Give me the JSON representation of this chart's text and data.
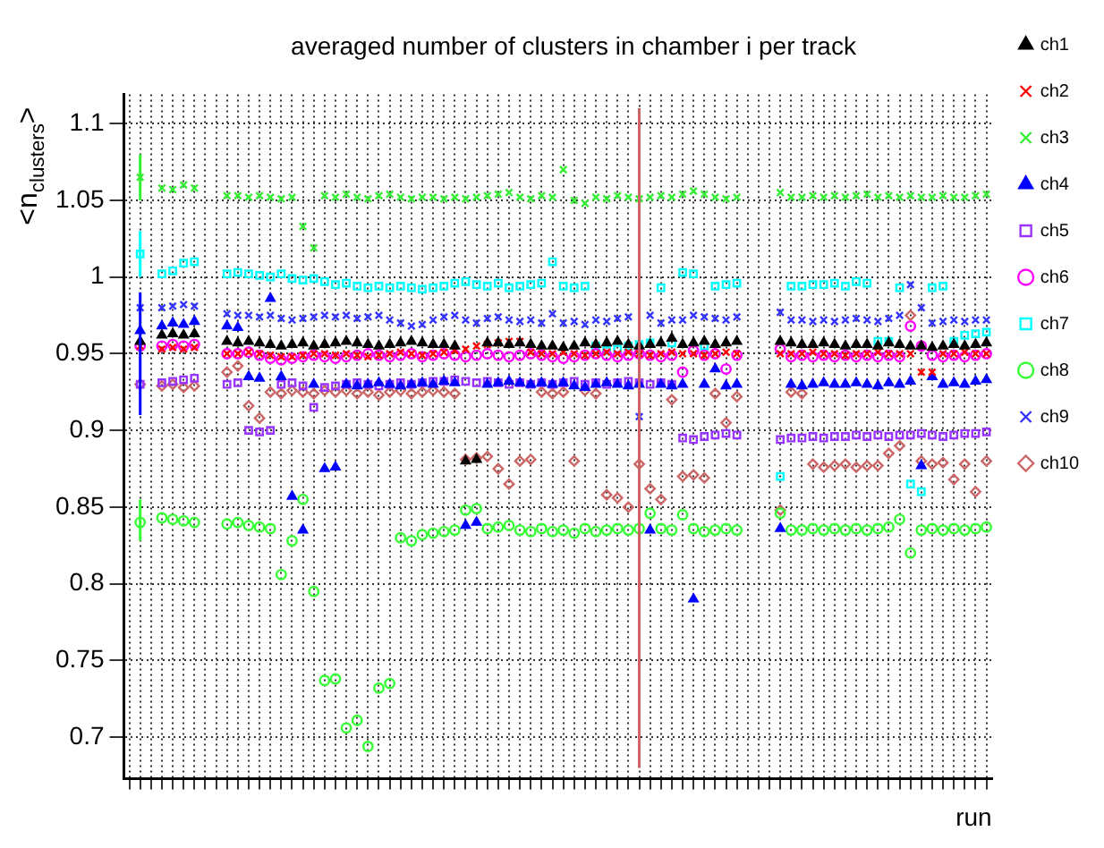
{
  "chart_data": {
    "type": "scatter",
    "title": "averaged number of clusters in chamber i per track",
    "xlabel": "run",
    "ylabel": "<n$_{clusters}$>",
    "categories": [
      null,
      null,
      null,
      null,
      null,
      null,
      null,
      null,
      null,
      null,
      null,
      null,
      null,
      null,
      null,
      null,
      null,
      null,
      null,
      null,
      null,
      null,
      null,
      null,
      null,
      null,
      null,
      null,
      null,
      null,
      null,
      null,
      null,
      null,
      null,
      null,
      null,
      null,
      null,
      null,
      null,
      null,
      null,
      null,
      null,
      null,
      null,
      null,
      null,
      null,
      null,
      null,
      null,
      null,
      null,
      null,
      null,
      null,
      null,
      null,
      null,
      null,
      null,
      null,
      null,
      null,
      null,
      null,
      null,
      null,
      null,
      null,
      null,
      null,
      null,
      null,
      null,
      null,
      null,
      null
    ],
    "ylim": [
      0.673,
      1.119
    ],
    "yticks": [
      0.7,
      0.75,
      0.8,
      0.85,
      0.9,
      0.95,
      1,
      1.05,
      1.1
    ],
    "grid": true,
    "legend": "right",
    "tick_labels": "y",
    "series": [
      {
        "name": "ch1",
        "color": "#000000",
        "marker": "triangle",
        "values": [
          null,
          0.958,
          null,
          0.962,
          0.963,
          0.962,
          0.963,
          null,
          null,
          0.958,
          0.957,
          0.958,
          0.957,
          0.956,
          0.955,
          0.956,
          0.957,
          0.955,
          0.956,
          0.957,
          0.958,
          0.957,
          0.956,
          0.955,
          0.956,
          0.957,
          0.958,
          0.957,
          0.956,
          0.956,
          0.955,
          0.88,
          0.881,
          0.957,
          0.957,
          0.956,
          0.957,
          0.956,
          0.955,
          0.955,
          0.954,
          0.955,
          0.957,
          0.956,
          0.957,
          0.958,
          0.956,
          0.955,
          0.956,
          0.957,
          0.96,
          0.956,
          0.957,
          0.958,
          0.956,
          0.957,
          0.958,
          null,
          null,
          null,
          0.958,
          0.957,
          0.956,
          0.956,
          0.957,
          0.956,
          0.955,
          0.956,
          0.956,
          0.955,
          0.957,
          0.956,
          0.955,
          0.955,
          0.954,
          0.955,
          0.956,
          0.955,
          0.956,
          0.957
        ]
      },
      {
        "name": "ch2",
        "color": "#ff0000",
        "marker": "cross",
        "values": [
          null,
          0.955,
          null,
          0.953,
          0.954,
          0.953,
          0.954,
          null,
          null,
          0.95,
          0.95,
          0.951,
          0.95,
          0.949,
          0.948,
          0.948,
          0.949,
          0.95,
          0.95,
          0.949,
          0.95,
          0.949,
          0.948,
          0.949,
          0.95,
          0.951,
          0.95,
          0.949,
          0.95,
          0.951,
          0.952,
          0.953,
          0.955,
          0.956,
          0.957,
          0.958,
          0.958,
          0.951,
          0.95,
          0.95,
          0.951,
          0.95,
          0.949,
          0.95,
          0.951,
          0.95,
          0.951,
          0.95,
          0.949,
          0.95,
          0.951,
          0.95,
          0.95,
          0.949,
          0.95,
          0.951,
          0.95,
          null,
          null,
          null,
          0.95,
          0.95,
          0.95,
          0.951,
          0.95,
          0.95,
          0.949,
          0.95,
          0.95,
          0.951,
          0.95,
          0.95,
          0.95,
          0.938,
          0.938,
          0.95,
          0.95,
          0.951,
          0.95,
          0.95
        ]
      },
      {
        "name": "ch3",
        "color": "#33ee33",
        "marker": "cross",
        "values": [
          null,
          1.065,
          null,
          1.058,
          1.057,
          1.06,
          1.058,
          null,
          null,
          1.053,
          1.053,
          1.052,
          1.053,
          1.052,
          1.051,
          1.052,
          1.033,
          1.019,
          1.053,
          1.052,
          1.054,
          1.052,
          1.051,
          1.053,
          1.054,
          1.052,
          1.051,
          1.052,
          1.052,
          1.051,
          1.052,
          1.051,
          1.052,
          1.053,
          1.054,
          1.055,
          1.052,
          1.051,
          1.053,
          1.052,
          1.07,
          1.05,
          1.048,
          1.052,
          1.051,
          1.053,
          1.052,
          1.051,
          1.052,
          1.053,
          1.052,
          1.054,
          1.056,
          1.054,
          1.052,
          1.051,
          1.052,
          null,
          null,
          null,
          1.055,
          1.052,
          1.052,
          1.053,
          1.052,
          1.053,
          1.052,
          1.053,
          1.054,
          1.052,
          1.053,
          1.052,
          1.053,
          1.052,
          1.052,
          1.053,
          1.052,
          1.052,
          1.053,
          1.054
        ],
        "errors": [
          null,
          [
            1.05,
            1.08
          ],
          null,
          null,
          null,
          null,
          null,
          null,
          null,
          null,
          null,
          null,
          null,
          null,
          null,
          null,
          null,
          null,
          null,
          null,
          null,
          null,
          null,
          null,
          null,
          null,
          null,
          null,
          null,
          null,
          null,
          null,
          null,
          null,
          null,
          null,
          null,
          null,
          null,
          null,
          null,
          null,
          null,
          null,
          null,
          null,
          null,
          null,
          null,
          null,
          null,
          null,
          null,
          null,
          null,
          null,
          null,
          null,
          null,
          null,
          null,
          null,
          null,
          null,
          null,
          null,
          null,
          null,
          null,
          null,
          null,
          null,
          null,
          null,
          null,
          null,
          null,
          null,
          null,
          null
        ]
      },
      {
        "name": "ch4",
        "color": "#0000ff",
        "marker": "triangle",
        "values": [
          null,
          0.965,
          null,
          0.968,
          0.97,
          0.969,
          0.971,
          null,
          null,
          0.968,
          0.967,
          0.935,
          0.934,
          0.986,
          0.935,
          0.857,
          0.835,
          0.93,
          0.875,
          0.876,
          0.93,
          0.929,
          0.93,
          0.931,
          0.93,
          0.929,
          0.93,
          0.931,
          0.93,
          0.932,
          0.931,
          0.838,
          0.84,
          0.93,
          0.931,
          0.932,
          0.931,
          0.93,
          0.931,
          0.93,
          0.931,
          0.929,
          0.928,
          0.93,
          0.931,
          0.93,
          0.929,
          0.93,
          0.835,
          0.93,
          0.929,
          0.93,
          0.79,
          0.93,
          0.94,
          0.929,
          0.93,
          null,
          null,
          null,
          0.836,
          0.93,
          0.929,
          0.93,
          0.931,
          0.93,
          0.93,
          0.931,
          0.93,
          0.929,
          0.931,
          0.93,
          0.932,
          0.877,
          0.935,
          0.93,
          0.931,
          0.93,
          0.932,
          0.933
        ],
        "errors": [
          null,
          [
            0.91,
            0.99
          ],
          null,
          null,
          null,
          null,
          null,
          null,
          null,
          null,
          null,
          null,
          null,
          null,
          null,
          null,
          null,
          null,
          null,
          null,
          null,
          null,
          null,
          null,
          null,
          null,
          null,
          null,
          null,
          null,
          null,
          null,
          null,
          null,
          null,
          null,
          null,
          null,
          null,
          null,
          null,
          null,
          null,
          null,
          null,
          null,
          null,
          null,
          null,
          null,
          null,
          null,
          null,
          null,
          null,
          null,
          null,
          null,
          null,
          null,
          null,
          null,
          null,
          null,
          null,
          null,
          null,
          null,
          null,
          null,
          null,
          null,
          null,
          null,
          null,
          null,
          null,
          null,
          null,
          null
        ]
      },
      {
        "name": "ch5",
        "color": "#9933ff",
        "marker": "square",
        "values": [
          null,
          0.93,
          null,
          0.931,
          0.932,
          0.933,
          0.934,
          null,
          null,
          0.93,
          0.931,
          0.9,
          0.899,
          0.9,
          0.93,
          0.931,
          0.929,
          0.915,
          0.928,
          0.929,
          0.93,
          0.931,
          0.93,
          0.929,
          0.93,
          0.931,
          0.93,
          0.931,
          0.932,
          0.932,
          0.933,
          0.932,
          0.931,
          0.932,
          0.931,
          0.93,
          0.931,
          0.93,
          0.931,
          0.93,
          0.931,
          0.932,
          0.93,
          0.931,
          0.93,
          0.931,
          0.932,
          0.931,
          0.93,
          0.931,
          0.93,
          0.895,
          0.894,
          0.896,
          0.897,
          0.898,
          0.897,
          null,
          null,
          null,
          0.894,
          0.895,
          0.895,
          0.896,
          0.895,
          0.896,
          0.896,
          0.897,
          0.896,
          0.897,
          0.896,
          0.897,
          0.897,
          0.898,
          0.897,
          0.896,
          0.897,
          0.898,
          0.898,
          0.899
        ]
      },
      {
        "name": "ch6",
        "color": "#ff00ff",
        "marker": "circle",
        "values": [
          null,
          0.955,
          null,
          0.955,
          0.956,
          0.955,
          0.956,
          null,
          null,
          0.95,
          0.95,
          0.951,
          0.949,
          0.947,
          0.946,
          0.947,
          0.948,
          0.949,
          0.948,
          0.947,
          0.948,
          0.949,
          0.95,
          0.949,
          0.948,
          0.949,
          0.95,
          0.948,
          0.949,
          0.95,
          0.949,
          0.948,
          0.949,
          0.95,
          0.949,
          0.948,
          0.949,
          0.95,
          0.949,
          0.948,
          0.947,
          0.948,
          0.949,
          0.95,
          0.949,
          0.948,
          0.949,
          0.95,
          0.949,
          0.948,
          0.949,
          0.938,
          0.952,
          0.949,
          0.95,
          0.94,
          0.949,
          null,
          null,
          null,
          0.953,
          0.948,
          0.949,
          0.948,
          0.949,
          0.948,
          0.949,
          0.948,
          0.949,
          0.948,
          0.949,
          0.948,
          0.968,
          0.955,
          0.949,
          0.948,
          0.949,
          0.948,
          0.949,
          0.95
        ]
      },
      {
        "name": "ch7",
        "color": "#00ffff",
        "marker": "square",
        "values": [
          null,
          1.015,
          null,
          1.002,
          1.004,
          1.009,
          1.01,
          null,
          null,
          1.002,
          1.003,
          1.002,
          1.001,
          1.0,
          1.002,
          0.999,
          0.998,
          0.999,
          0.997,
          0.995,
          0.996,
          0.994,
          0.993,
          0.994,
          0.993,
          0.994,
          0.993,
          0.992,
          0.993,
          0.994,
          0.996,
          0.997,
          0.995,
          0.994,
          0.996,
          0.993,
          0.994,
          0.995,
          0.996,
          1.01,
          0.994,
          0.993,
          0.994,
          0.955,
          0.952,
          0.953,
          0.955,
          0.956,
          0.957,
          0.993,
          0.957,
          1.003,
          1.002,
          0.955,
          0.994,
          0.995,
          0.996,
          null,
          null,
          null,
          0.87,
          0.994,
          0.994,
          0.995,
          0.995,
          0.996,
          0.994,
          0.997,
          0.996,
          0.958,
          0.958,
          0.993,
          0.865,
          0.86,
          0.993,
          0.994,
          0.958,
          0.962,
          0.963,
          0.964
        ],
        "errors": [
          null,
          [
            1.0,
            1.03
          ],
          null,
          null,
          null,
          null,
          null,
          null,
          null,
          null,
          null,
          null,
          null,
          null,
          null,
          null,
          null,
          null,
          null,
          null,
          null,
          null,
          null,
          null,
          null,
          null,
          null,
          null,
          null,
          null,
          null,
          null,
          null,
          null,
          null,
          null,
          null,
          null,
          null,
          null,
          null,
          null,
          null,
          null,
          null,
          null,
          null,
          null,
          null,
          null,
          null,
          null,
          null,
          null,
          null,
          null,
          null,
          null,
          null,
          null,
          null,
          null,
          null,
          null,
          null,
          null,
          null,
          null,
          null,
          null,
          null,
          null,
          null,
          null,
          null,
          null,
          null,
          null,
          null,
          null
        ]
      },
      {
        "name": "ch8",
        "color": "#33ff33",
        "marker": "circle",
        "values": [
          null,
          0.84,
          null,
          0.843,
          0.842,
          0.841,
          0.84,
          null,
          null,
          0.839,
          0.84,
          0.838,
          0.837,
          0.836,
          0.806,
          0.828,
          0.855,
          0.795,
          0.737,
          0.738,
          0.706,
          0.711,
          0.694,
          0.732,
          0.735,
          0.83,
          0.828,
          0.832,
          0.833,
          0.834,
          0.835,
          0.848,
          0.849,
          0.836,
          0.837,
          0.838,
          0.835,
          0.834,
          0.836,
          0.834,
          0.835,
          0.833,
          0.836,
          0.834,
          0.835,
          0.836,
          0.835,
          0.836,
          0.846,
          0.836,
          0.835,
          0.845,
          0.836,
          0.834,
          0.835,
          0.836,
          0.835,
          null,
          null,
          null,
          0.846,
          0.835,
          0.835,
          0.836,
          0.835,
          0.836,
          0.835,
          0.836,
          0.835,
          0.836,
          0.837,
          0.842,
          0.82,
          0.835,
          0.836,
          0.835,
          0.836,
          0.835,
          0.836,
          0.837
        ],
        "errors": [
          null,
          [
            0.828,
            0.855
          ],
          null,
          null,
          null,
          null,
          null,
          null,
          null,
          null,
          null,
          null,
          null,
          null,
          null,
          null,
          null,
          null,
          null,
          null,
          null,
          null,
          null,
          null,
          null,
          null,
          null,
          null,
          null,
          null,
          null,
          null,
          null,
          null,
          null,
          null,
          null,
          null,
          null,
          null,
          null,
          null,
          null,
          null,
          null,
          null,
          null,
          null,
          null,
          null,
          null,
          null,
          null,
          null,
          null,
          null,
          null,
          null,
          null,
          null,
          null,
          null,
          null,
          null,
          null,
          null,
          null,
          null,
          null,
          null,
          null,
          null,
          null,
          null,
          null,
          null,
          null,
          null,
          null,
          null
        ]
      },
      {
        "name": "ch9",
        "color": "#3333ff",
        "marker": "cross",
        "values": [
          null,
          0.98,
          null,
          0.98,
          0.981,
          0.982,
          0.981,
          null,
          null,
          0.976,
          0.975,
          0.975,
          0.974,
          0.975,
          0.973,
          0.972,
          0.973,
          0.974,
          0.975,
          0.974,
          0.975,
          0.973,
          0.974,
          0.975,
          0.972,
          0.97,
          0.968,
          0.969,
          0.972,
          0.974,
          0.975,
          0.972,
          0.97,
          0.973,
          0.974,
          0.972,
          0.971,
          0.972,
          0.97,
          0.976,
          0.97,
          0.971,
          0.969,
          0.972,
          0.971,
          0.973,
          0.974,
          0.909,
          0.975,
          0.97,
          0.972,
          0.972,
          0.975,
          0.974,
          0.973,
          0.972,
          0.974,
          null,
          null,
          null,
          0.977,
          0.972,
          0.972,
          0.971,
          0.972,
          0.971,
          0.972,
          0.973,
          0.972,
          0.971,
          0.973,
          0.975,
          0.995,
          0.98,
          0.97,
          0.971,
          0.972,
          0.971,
          0.972,
          0.972
        ]
      },
      {
        "name": "ch10",
        "color": "#cc6666",
        "marker": "diamond",
        "values": [
          null,
          0.93,
          null,
          0.929,
          0.93,
          0.928,
          0.929,
          null,
          null,
          0.938,
          0.942,
          0.916,
          0.908,
          0.925,
          0.924,
          0.926,
          0.925,
          0.924,
          0.926,
          0.925,
          0.926,
          0.924,
          0.925,
          0.923,
          0.925,
          0.926,
          0.924,
          0.925,
          0.926,
          0.925,
          0.924,
          0.881,
          0.882,
          0.883,
          0.875,
          0.865,
          0.88,
          0.881,
          0.925,
          0.924,
          0.925,
          0.88,
          0.926,
          0.924,
          0.858,
          0.856,
          0.85,
          0.878,
          0.862,
          0.855,
          0.92,
          0.87,
          0.871,
          0.869,
          0.924,
          0.905,
          0.922,
          null,
          null,
          null,
          0.848,
          0.925,
          0.924,
          0.878,
          0.876,
          0.877,
          0.878,
          0.876,
          0.877,
          0.877,
          0.885,
          0.89,
          0.975,
          0.88,
          0.878,
          0.879,
          0.868,
          0.878,
          0.86,
          0.88
        ],
        "errors": [
          null,
          null,
          null,
          null,
          null,
          null,
          null,
          null,
          null,
          null,
          null,
          null,
          null,
          null,
          null,
          null,
          null,
          null,
          null,
          null,
          null,
          null,
          null,
          null,
          null,
          null,
          null,
          null,
          null,
          null,
          null,
          null,
          null,
          null,
          null,
          null,
          null,
          null,
          null,
          null,
          null,
          null,
          null,
          null,
          null,
          null,
          null,
          [
            0.68,
            1.11
          ],
          null,
          null,
          null,
          null,
          null,
          null,
          null,
          null,
          null,
          null,
          null,
          null,
          null,
          null,
          null,
          null,
          null,
          null,
          null,
          null,
          null,
          null,
          null,
          null,
          null,
          null,
          null,
          null,
          null,
          null,
          null,
          null
        ]
      }
    ]
  }
}
